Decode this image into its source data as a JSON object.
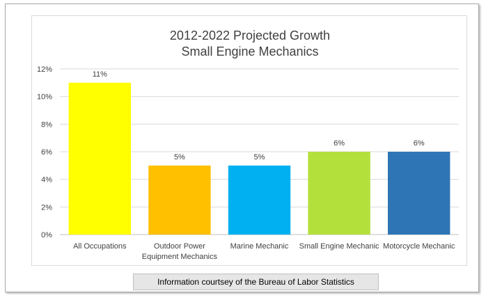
{
  "chart_data": {
    "type": "bar",
    "title": [
      "2012-2022 Projected Growth",
      "Small Engine Mechanics"
    ],
    "categories": [
      [
        "All Occupations"
      ],
      [
        "Outdoor Power",
        "Equipment Mechanics"
      ],
      [
        "Marine Mechanic"
      ],
      [
        "Small Engine Mechanic"
      ],
      [
        "Motorcycle Mechanic"
      ]
    ],
    "values": [
      11,
      5,
      5,
      6,
      6
    ],
    "data_labels": [
      "11%",
      "5%",
      "5%",
      "6%",
      "6%"
    ],
    "colors": [
      "#ffff00",
      "#ffc000",
      "#00b0f0",
      "#b4e03c",
      "#2e75b6"
    ],
    "yticks": [
      "0%",
      "2%",
      "4%",
      "6%",
      "8%",
      "10%",
      "12%"
    ],
    "ylim": [
      0,
      12
    ],
    "grid": true,
    "legend": "none"
  },
  "source_note": "Information courtsey of the Bureau of Labor Statistics"
}
